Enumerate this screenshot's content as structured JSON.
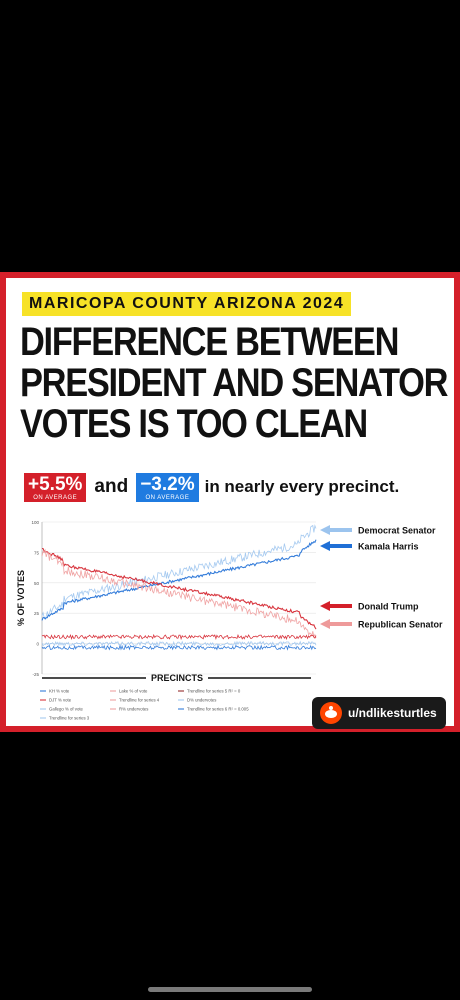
{
  "header": {
    "tag": "MARICOPA COUNTY ARIZONA 2024",
    "headline": [
      "DIFFERENCE BETWEEN",
      "PRESIDENT AND SENATOR",
      "VOTES IS TOO CLEAN"
    ]
  },
  "subline": {
    "pill_red_value": "+5.5%",
    "pill_red_caption": "ON AVERAGE",
    "and": "and",
    "pill_blue_value": "−3.2%",
    "pill_blue_caption": "ON AVERAGE",
    "tail": "in nearly every precinct."
  },
  "chart_data": {
    "type": "line",
    "ylabel": "% OF VOTES",
    "xlabel": "PRECINCTS",
    "ylim": [
      -25,
      100
    ],
    "yticks": [
      100,
      75,
      50,
      25,
      0,
      -25
    ],
    "series": [
      {
        "name": "Democrat Senator",
        "color": "#9cc4ee",
        "start": 22,
        "end": 96
      },
      {
        "name": "Kamala Harris",
        "color": "#1f6fd6",
        "start": 20,
        "end": 85
      },
      {
        "name": "Donald Trump",
        "color": "#d4202a",
        "start": 78,
        "end": 13
      },
      {
        "name": "Republican Senator",
        "color": "#ee9a9a",
        "start": 75,
        "end": 5
      }
    ],
    "difference_lines": [
      {
        "color": "#d4202a",
        "value": 5.5
      },
      {
        "color": "#9cc4ee",
        "value": 0
      },
      {
        "color": "#1f6fd6",
        "value": -3.2
      }
    ],
    "legend": [
      {
        "label": "KH % vote",
        "color": "#1f6fd6"
      },
      {
        "label": "DJT % vote",
        "color": "#d4202a"
      },
      {
        "label": "Gallego % of vote",
        "color": "#9cc4ee"
      },
      {
        "label": "Trendline for series 3",
        "color": "#9cc4ee"
      },
      {
        "label": "Lake % of vote",
        "color": "#ee9a9a"
      },
      {
        "label": "Trendline for series 4",
        "color": "#ee9a9a"
      },
      {
        "label": "R% undervotes",
        "color": "#ee9a9a"
      },
      {
        "label": "Trendline for series 5 R² = 0",
        "color": "#8b1a1a"
      },
      {
        "label": "D% undervotes",
        "color": "#9cc4ee"
      },
      {
        "label": "Trendline for series 6 R² = 0.005",
        "color": "#1f6fd6"
      }
    ]
  },
  "credit": {
    "username": "u/ndlikesturtles"
  }
}
